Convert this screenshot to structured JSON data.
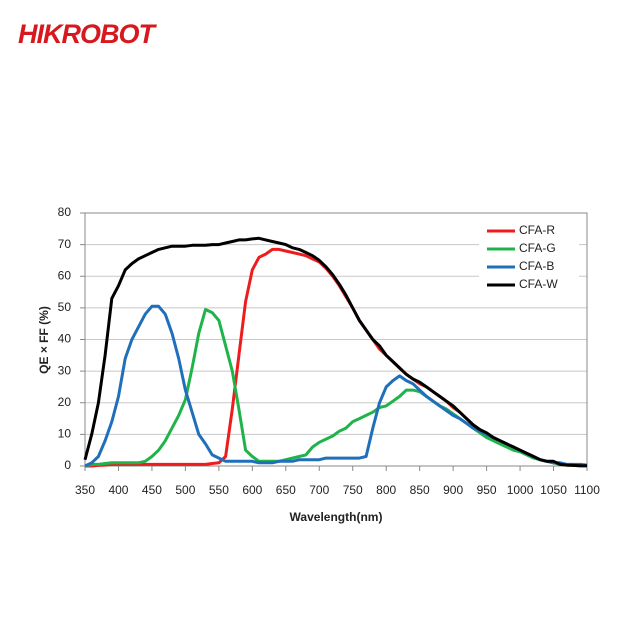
{
  "logo": "HIKROBOT",
  "chart_data": {
    "type": "line",
    "x_label": "Wavelength(nm)",
    "y_label": "QE × FF (%)",
    "x": [
      350,
      360,
      370,
      380,
      390,
      400,
      410,
      420,
      430,
      440,
      450,
      460,
      470,
      480,
      490,
      500,
      510,
      520,
      530,
      540,
      550,
      560,
      570,
      580,
      590,
      600,
      610,
      620,
      630,
      640,
      650,
      660,
      670,
      680,
      690,
      700,
      710,
      720,
      730,
      740,
      750,
      760,
      770,
      780,
      790,
      800,
      810,
      820,
      830,
      840,
      850,
      860,
      870,
      880,
      890,
      900,
      910,
      920,
      930,
      940,
      950,
      960,
      970,
      980,
      990,
      1000,
      1010,
      1020,
      1030,
      1040,
      1050,
      1060,
      1070,
      1080,
      1090,
      1100
    ],
    "series": [
      {
        "name": "CFA-R",
        "color": "#ee1c1c",
        "values": [
          0,
          0,
          0.2,
          0.3,
          0.5,
          0.5,
          0.5,
          0.5,
          0.5,
          0.5,
          0.5,
          0.5,
          0.5,
          0.5,
          0.5,
          0.5,
          0.5,
          0.5,
          0.5,
          0.8,
          1,
          3,
          18,
          35,
          52,
          62,
          66,
          67,
          68.5,
          68.5,
          68,
          67.5,
          67,
          66.5,
          65.5,
          64.5,
          62.5,
          60,
          57,
          53.5,
          50,
          46,
          43,
          40,
          37,
          35,
          33,
          31,
          29,
          27.5,
          26,
          25,
          23.5,
          22,
          20.5,
          18.5,
          17,
          15,
          13,
          11.5,
          10,
          9,
          8,
          7,
          6,
          5,
          4,
          3,
          2,
          1.5,
          1,
          0.5,
          0.3,
          0.2,
          0.1,
          0.1
        ]
      },
      {
        "name": "CFA-G",
        "color": "#1fb44a",
        "values": [
          0,
          0.5,
          0.5,
          0.8,
          1,
          1,
          1,
          1,
          1,
          1.5,
          3,
          5,
          8,
          12,
          16,
          21,
          31,
          42,
          49.5,
          48.5,
          46,
          38,
          30,
          18,
          5,
          3,
          1.5,
          1.5,
          1.5,
          1.5,
          2,
          2.5,
          3,
          3.5,
          6,
          7.5,
          8.5,
          9.5,
          11,
          12,
          14,
          15,
          16,
          17,
          18.5,
          19,
          20.5,
          22,
          24,
          24,
          23.5,
          22,
          20.5,
          19,
          18,
          16.5,
          15,
          13.5,
          12,
          10.5,
          9,
          8,
          7,
          6,
          5,
          4.5,
          3.5,
          2.5,
          2,
          1.5,
          1,
          0.5,
          0.3,
          0.2,
          0.1,
          0.1
        ]
      },
      {
        "name": "CFA-B",
        "color": "#1f6fba",
        "values": [
          0,
          1,
          3,
          8,
          14,
          22,
          34,
          40,
          44,
          48,
          50.5,
          50.5,
          48,
          42,
          34,
          24,
          17,
          10,
          7,
          3.5,
          2.5,
          1.5,
          1.5,
          1.5,
          1.5,
          1.5,
          1,
          1,
          1,
          1.5,
          1.5,
          1.5,
          2,
          2,
          2,
          2,
          2.5,
          2.5,
          2.5,
          2.5,
          2.5,
          2.5,
          3,
          12,
          20,
          25,
          27,
          28.5,
          27,
          26,
          24,
          22,
          20.5,
          19,
          17.5,
          16,
          15,
          13.5,
          12,
          11,
          10,
          9,
          8,
          7,
          6,
          5,
          4,
          3,
          2,
          1.5,
          1,
          1,
          0.5,
          0.5,
          0.5,
          0.3
        ]
      },
      {
        "name": "CFA-W",
        "color": "#000000",
        "values": [
          2,
          10,
          20,
          35,
          53,
          57,
          62,
          64,
          65.5,
          66.5,
          67.5,
          68.5,
          69,
          69.5,
          69.5,
          69.5,
          69.8,
          69.8,
          69.8,
          70,
          70,
          70.5,
          71,
          71.5,
          71.5,
          71.8,
          72,
          71.5,
          71,
          70.5,
          70,
          69,
          68.5,
          67.5,
          66.5,
          65,
          63,
          60.5,
          57.5,
          54,
          50,
          46,
          43,
          40,
          38,
          35,
          33,
          31,
          29,
          27.5,
          26.5,
          25,
          23.5,
          22,
          20.5,
          19,
          17,
          15,
          13,
          11.5,
          10.5,
          9,
          8,
          7,
          6,
          5,
          4,
          3,
          2,
          1.5,
          1.5,
          0.5,
          0.3,
          0.2,
          0.1,
          0.1
        ]
      }
    ],
    "xlim": [
      350,
      1100
    ],
    "xticks": [
      350,
      400,
      450,
      500,
      550,
      600,
      650,
      700,
      750,
      800,
      850,
      900,
      950,
      1000,
      1050,
      1100
    ],
    "ylim": [
      0,
      80
    ],
    "yticks": [
      0,
      10,
      20,
      30,
      40,
      50,
      60,
      70,
      80
    ],
    "grid": true,
    "legend": "upper right"
  }
}
